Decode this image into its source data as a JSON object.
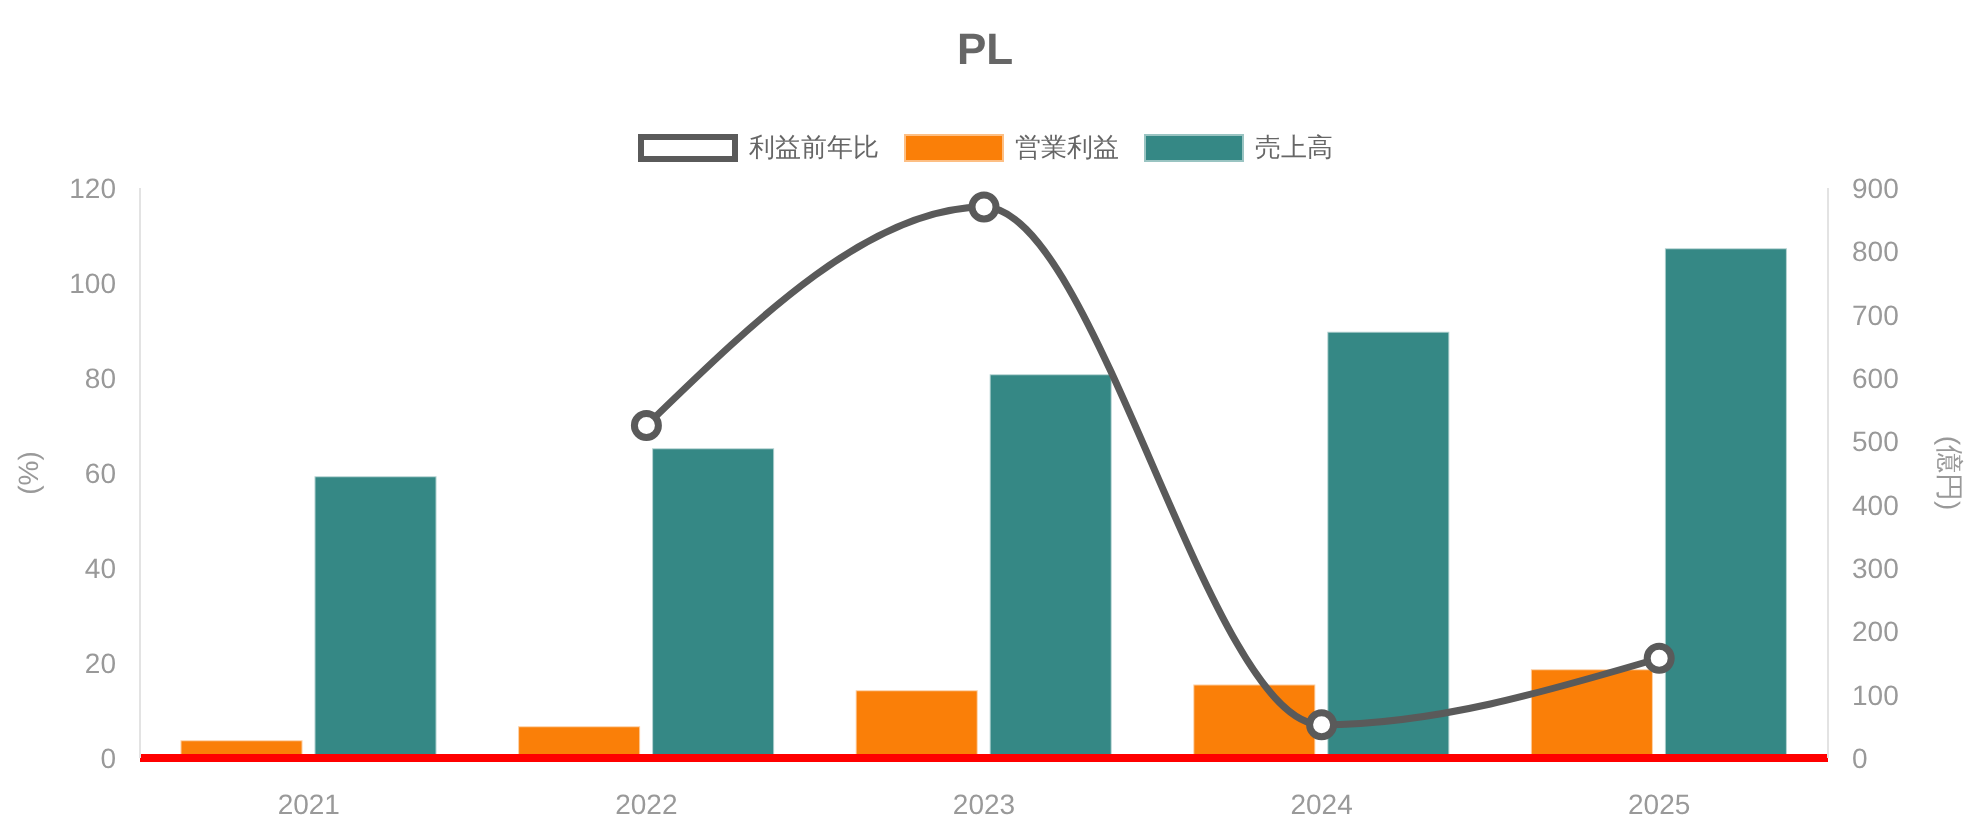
{
  "chart_data": {
    "type": "bar",
    "title": "PL",
    "categories": [
      "2021",
      "2022",
      "2023",
      "2024",
      "2025"
    ],
    "series": [
      {
        "name": "利益前年比",
        "type": "line",
        "axis": "y",
        "color": "#5a5a5a",
        "values": [
          null,
          70,
          116,
          7,
          21
        ]
      },
      {
        "name": "営業利益",
        "axis": "y2",
        "color": "#fa7f08",
        "values": [
          28,
          50,
          107,
          116,
          140
        ]
      },
      {
        "name": "売上高",
        "axis": "y2",
        "color": "#358885",
        "values": [
          445,
          489,
          606,
          673,
          805
        ]
      }
    ],
    "ylabel": "(%)",
    "y2label": "(億円)",
    "ylim": [
      0,
      120
    ],
    "yticks": [
      0,
      20,
      40,
      60,
      80,
      100,
      120
    ],
    "y2lim": [
      0,
      900
    ],
    "y2ticks": [
      0,
      100,
      200,
      300,
      400,
      500,
      600,
      700,
      800,
      900
    ],
    "legend": "top",
    "marker": "circle"
  }
}
